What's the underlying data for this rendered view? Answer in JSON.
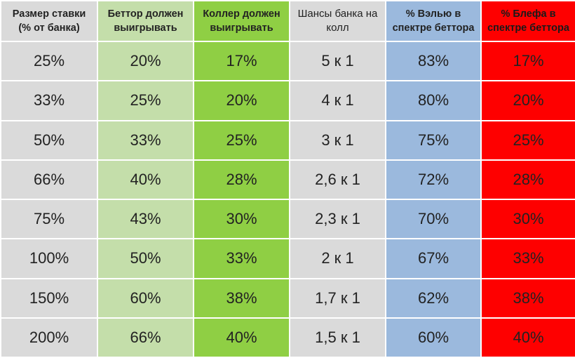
{
  "table": {
    "headers": [
      {
        "line1": "Размер ставки",
        "line2": "(% от банка)"
      },
      {
        "line1": "Беттор должен",
        "line2": "выигрывать"
      },
      {
        "line1": "Коллер должен",
        "line2": "выигрывать"
      },
      {
        "line1": "Шансы банка на",
        "line2": "колл"
      },
      {
        "line1": "% Вэлью в",
        "line2": "спектре беттора"
      },
      {
        "line1": "% Блефа в",
        "line2": "спектре беттора"
      }
    ],
    "rows": [
      [
        "25%",
        "20%",
        "17%",
        "5 к 1",
        "83%",
        "17%"
      ],
      [
        "33%",
        "25%",
        "20%",
        "4 к 1",
        "80%",
        "20%"
      ],
      [
        "50%",
        "33%",
        "25%",
        "3 к 1",
        "75%",
        "25%"
      ],
      [
        "66%",
        "40%",
        "28%",
        "2,6 к 1",
        "72%",
        "28%"
      ],
      [
        "75%",
        "43%",
        "30%",
        "2,3 к 1",
        "70%",
        "30%"
      ],
      [
        "100%",
        "50%",
        "33%",
        "2 к 1",
        "67%",
        "33%"
      ],
      [
        "150%",
        "60%",
        "38%",
        "1,7 к 1",
        "62%",
        "38%"
      ],
      [
        "200%",
        "66%",
        "40%",
        "1,5 к 1",
        "60%",
        "40%"
      ]
    ],
    "column_colors": [
      "#dadada",
      "#c4deaa",
      "#8fcf44",
      "#dadada",
      "#9bb9dd",
      "#fe0000"
    ]
  }
}
